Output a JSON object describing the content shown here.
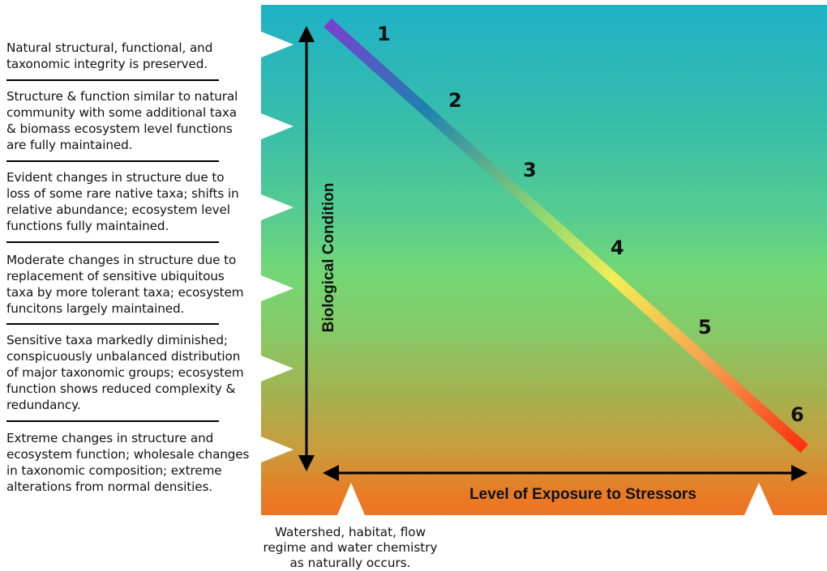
{
  "descriptions": [
    "Natural structural, functional, and taxonomic integrity is preserved.",
    "Structure & function similar to natural community with some additional taxa & biomass ecosystem level functions are fully maintained.",
    "Evident changes in structure due to loss of some rare native taxa; shifts in relative abundance; ecosystem level functions fully maintained.",
    "Moderate changes in structure due to replacement of sensitive ubiquitous taxa by more tolerant taxa; ecosystem funcitons largely maintained.",
    "Sensitive taxa markedly diminished; conspicuously unbalanced distribution of major taxonomic groups; ecosystem function shows reduced complexity & redundancy.",
    "Extreme changes in structure and ecosystem function; wholesale changes in taxonomic composition; extreme alterations from normal densities."
  ],
  "axes": {
    "vertical_label": "Biological Condition",
    "horizontal_label": "Level of Exposure to Stressors"
  },
  "tiers": [
    "1",
    "2",
    "3",
    "4",
    "5",
    "6"
  ],
  "caption": "Watershed, habitat, flow regime and water chemistry as naturally occurs.",
  "colors": {
    "background_top": "#1eb1c7",
    "background_middle": "#72d776",
    "background_bottom": "#ee7324",
    "line_start": "#7b3fd0",
    "line_blue": "#1f80b0",
    "line_yellow": "#f2ee55",
    "line_end": "#ff3010"
  }
}
